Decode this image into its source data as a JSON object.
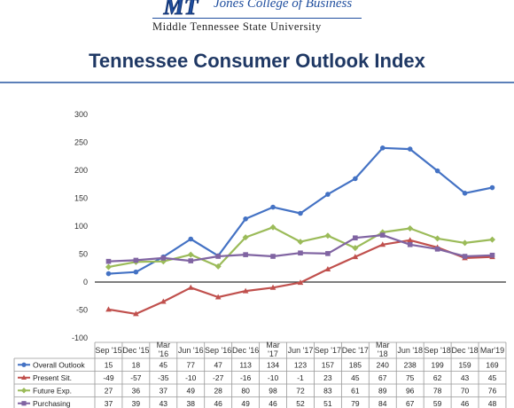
{
  "header": {
    "college": "Jones College of Business",
    "university": "Middle Tennessee State University",
    "logo_text": "MT"
  },
  "title": "Tennessee Consumer Outlook Index",
  "colors": {
    "title": "#1f3864",
    "overall": "#4472c4",
    "present": "#c0504d",
    "future": "#9bbb59",
    "purchasing": "#8064a2"
  },
  "chart_data": {
    "type": "line",
    "title": "Tennessee Consumer Outlook Index",
    "categories": [
      "Sep '15",
      "Dec '15",
      "Mar '16",
      "Jun '16",
      "Sep '16",
      "Dec '16",
      "Mar '17",
      "Jun '17",
      "Sep '17",
      "Dec '17",
      "Mar '18",
      "Jun '18",
      "Sep '18",
      "Dec '18",
      "Mar'19"
    ],
    "y_ticks": [
      "300",
      "250",
      "200",
      "150",
      "100",
      "50",
      "0",
      "-50",
      "-100"
    ],
    "ylim": [
      -100,
      300
    ],
    "grid": false,
    "legend": "table-below",
    "series": [
      {
        "name": "Overall Outlook",
        "color": "#4472c4",
        "marker": "circle",
        "values": [
          15,
          18,
          45,
          77,
          47,
          113,
          134,
          123,
          157,
          185,
          240,
          238,
          199,
          159,
          169
        ]
      },
      {
        "name": "Present Sit.",
        "color": "#c0504d",
        "marker": "triangle",
        "values": [
          -49,
          -57,
          -35,
          -10,
          -27,
          -16,
          -10,
          -1,
          23,
          45,
          67,
          75,
          62,
          43,
          45
        ]
      },
      {
        "name": "Future Exp.",
        "color": "#9bbb59",
        "marker": "diamond",
        "values": [
          27,
          36,
          37,
          49,
          28,
          80,
          98,
          72,
          83,
          61,
          89,
          96,
          78,
          70,
          76
        ]
      },
      {
        "name": "Purchasing",
        "color": "#8064a2",
        "marker": "square",
        "values": [
          37,
          39,
          43,
          38,
          46,
          49,
          46,
          52,
          51,
          79,
          84,
          67,
          59,
          46,
          48
        ]
      }
    ]
  }
}
